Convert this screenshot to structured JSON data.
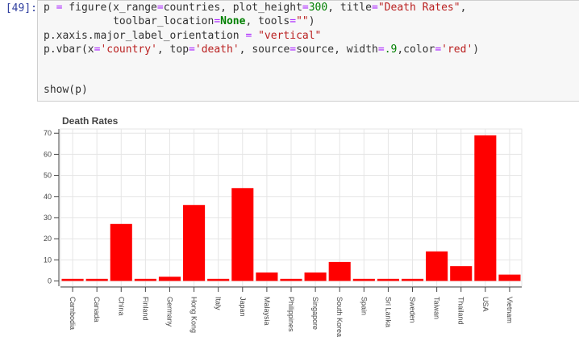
{
  "cell": {
    "prompt": "[49]:",
    "lines": [
      [
        [
          "p ",
          ""
        ],
        [
          "=",
          "kw-op"
        ],
        [
          " figure(x_range",
          ""
        ],
        [
          "=",
          "kw-op"
        ],
        [
          "countries, plot_height",
          ""
        ],
        [
          "=",
          "kw-op"
        ],
        [
          "300",
          "num"
        ],
        [
          ", title",
          ""
        ],
        [
          "=",
          "kw-op"
        ],
        [
          "\"Death Rates\"",
          "str"
        ],
        [
          ",",
          ""
        ]
      ],
      [
        [
          "           toolbar_location",
          ""
        ],
        [
          "=",
          "kw-op"
        ],
        [
          "None",
          "kwc"
        ],
        [
          ", tools",
          ""
        ],
        [
          "=",
          "kw-op"
        ],
        [
          "\"\"",
          "str"
        ],
        [
          ")",
          ""
        ]
      ],
      [
        [
          "p.xaxis.major_label_orientation ",
          ""
        ],
        [
          "=",
          "kw-op"
        ],
        [
          " ",
          ""
        ],
        [
          "\"vertical\"",
          "str"
        ]
      ],
      [
        [
          "p.vbar(x",
          ""
        ],
        [
          "=",
          "kw-op"
        ],
        [
          "'country'",
          "str"
        ],
        [
          ", top",
          ""
        ],
        [
          "=",
          "kw-op"
        ],
        [
          "'death'",
          "str"
        ],
        [
          ", source",
          ""
        ],
        [
          "=",
          "kw-op"
        ],
        [
          "source, width",
          ""
        ],
        [
          "=",
          "kw-op"
        ],
        [
          ".9",
          "num"
        ],
        [
          ",color",
          ""
        ],
        [
          "=",
          "kw-op"
        ],
        [
          "'red'",
          "str"
        ],
        [
          ")",
          ""
        ]
      ],
      [],
      [],
      [
        [
          "show(p)",
          ""
        ]
      ]
    ]
  },
  "chart_data": {
    "type": "bar",
    "title": "Death Rates",
    "categories": [
      "Cambodia",
      "Canada",
      "China",
      "Finland",
      "Germany",
      "Hong Kong",
      "Italy",
      "Japan",
      "Malaysia",
      "Philippines",
      "Singapore",
      "South Korea",
      "Spain",
      "Sri Lanka",
      "Sweden",
      "Taiwan",
      "Thailand",
      "USA",
      "Vietnam"
    ],
    "values": [
      1,
      1,
      27,
      1,
      2,
      36,
      1,
      44,
      4,
      1,
      4,
      9,
      1,
      1,
      1,
      14,
      7,
      69,
      3
    ],
    "ylim": [
      -2.5,
      72
    ],
    "yticks": [
      0,
      10,
      20,
      30,
      40,
      50,
      60,
      70
    ],
    "bar_color": "#ff0000",
    "xlabel_orientation": "vertical",
    "grid": true,
    "legend": "none"
  }
}
